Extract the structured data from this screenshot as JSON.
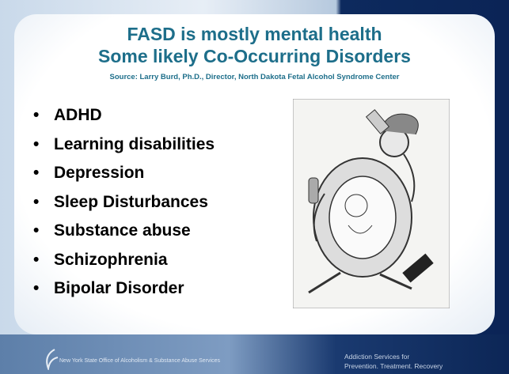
{
  "header": {
    "title_lines": [
      "FASD is mostly mental health",
      "Some likely Co-Occurring Disorders"
    ],
    "source": "Source: Larry Burd, Ph.D., Director, North Dakota Fetal Alcohol Syndrome Center"
  },
  "bullets": [
    "ADHD",
    "Learning disabilities",
    "Depression",
    "Sleep Disturbances",
    "Substance abuse",
    "Schizophrenia",
    "Bipolar Disorder"
  ],
  "footer": {
    "left": "New York State Office of Alcoholism & Substance Abuse Services",
    "right_lines": [
      "Addiction Services for",
      "Prevention. Treatment. Recovery"
    ]
  }
}
